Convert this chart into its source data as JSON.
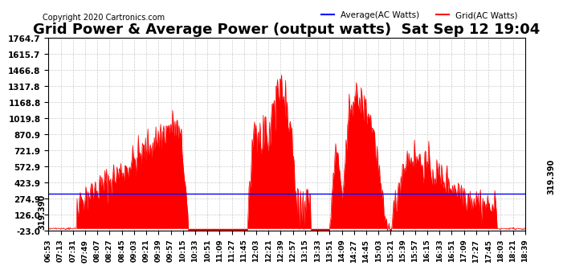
{
  "title": "Grid Power & Average Power (output watts)  Sat Sep 12 19:04",
  "copyright": "Copyright 2020 Cartronics.com",
  "legend_average": "Average(AC Watts)",
  "legend_grid": "Grid(AC Watts)",
  "legend_average_color": "#0000FF",
  "legend_grid_color": "#FF0000",
  "y_ticks": [
    1764.7,
    1615.7,
    1466.8,
    1317.8,
    1168.8,
    1019.8,
    870.9,
    721.9,
    572.9,
    423.9,
    274.9,
    126.0,
    -23.0
  ],
  "average_line_value": 319.39,
  "average_line_label": "319.390",
  "background_color": "#FFFFFF",
  "grid_color": "#CCCCCC",
  "fill_color": "#FF0000",
  "title_fontsize": 13,
  "x_tick_labels": [
    "06:53",
    "07:13",
    "07:31",
    "07:49",
    "08:07",
    "08:27",
    "08:45",
    "09:03",
    "09:21",
    "09:39",
    "09:57",
    "10:15",
    "10:33",
    "10:51",
    "11:09",
    "11:27",
    "11:45",
    "12:03",
    "12:21",
    "12:39",
    "12:57",
    "13:15",
    "13:33",
    "13:51",
    "14:09",
    "14:27",
    "14:45",
    "15:03",
    "15:21",
    "15:39",
    "15:57",
    "16:15",
    "16:33",
    "16:51",
    "17:09",
    "17:27",
    "17:45",
    "18:03",
    "18:21",
    "18:39"
  ],
  "ylim_min": -23.0,
  "ylim_max": 1764.7
}
